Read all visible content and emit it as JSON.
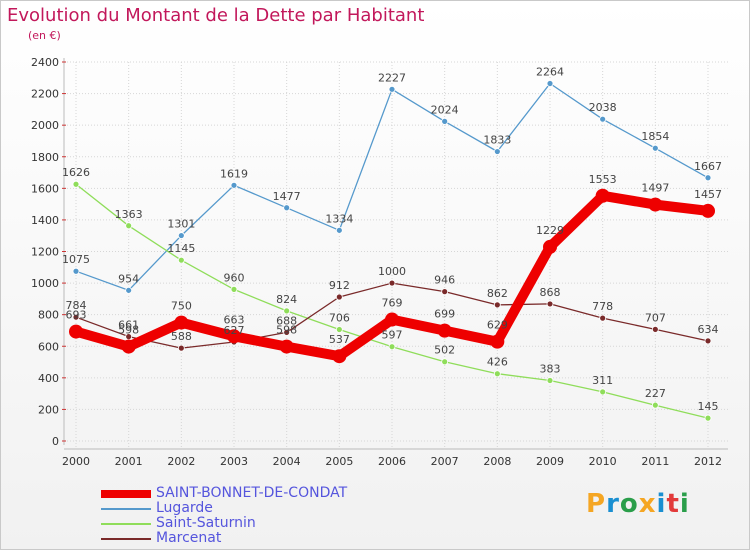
{
  "header": {
    "title": "Evolution du Montant de la Dette par Habitant",
    "subtitle": "(en €)"
  },
  "logo": {
    "text": "Proxiti",
    "colors": [
      "#f5a623",
      "#1a8fd1",
      "#2a9e4a",
      "#f5a623",
      "#1a8fd1",
      "#e23a3a",
      "#2a9e4a"
    ]
  },
  "chart_data": {
    "type": "line",
    "title": "Evolution du Montant de la Dette par Habitant",
    "subtitle": "(en €)",
    "xlabel": "",
    "ylabel": "",
    "ylim": [
      0,
      2400
    ],
    "yticks": [
      0,
      200,
      400,
      600,
      800,
      1000,
      1200,
      1400,
      1600,
      1800,
      2000,
      2200,
      2400
    ],
    "categories": [
      "2000",
      "2001",
      "2002",
      "2003",
      "2004",
      "2005",
      "2006",
      "2007",
      "2008",
      "2009",
      "2010",
      "2011",
      "2012"
    ],
    "grid": true,
    "legend_position": "bottom-left",
    "series": [
      {
        "name": "SAINT-BONNET-DE-CONDAT",
        "color": "#ee0000",
        "width": 10,
        "marker": 7,
        "values": [
          693,
          598,
          750,
          663,
          598,
          537,
          769,
          699,
          629,
          1229,
          1553,
          1497,
          1457
        ],
        "labels": [
          "693",
          "598",
          "750",
          "663",
          "598",
          "537",
          "769",
          "699",
          "629",
          "1229",
          "1553",
          "1497",
          "1457"
        ]
      },
      {
        "name": "Lugarde",
        "color": "#5599cc",
        "width": 1.3,
        "marker": 3,
        "values": [
          1075,
          954,
          1301,
          1619,
          1477,
          1334,
          2227,
          2024,
          1833,
          2264,
          2038,
          1854,
          1667
        ],
        "labels": [
          "1075",
          "954",
          "1301",
          "1619",
          "1477",
          "1334",
          "2227",
          "2024",
          "1833",
          "2264",
          "2038",
          "1854",
          "1667"
        ]
      },
      {
        "name": "Saint-Saturnin",
        "color": "#8fdd5a",
        "width": 1.3,
        "marker": 3,
        "values": [
          1626,
          1363,
          1145,
          960,
          824,
          706,
          597,
          502,
          426,
          383,
          311,
          227,
          145
        ],
        "labels": [
          "1626",
          "1363",
          "1145",
          "960",
          "824",
          "706",
          "597",
          "502",
          "426",
          "383",
          "311",
          "227",
          "145"
        ]
      },
      {
        "name": "Marcenat",
        "color": "#7a2a2a",
        "width": 1.3,
        "marker": 3,
        "values": [
          784,
          661,
          588,
          627,
          688,
          912,
          1000,
          946,
          862,
          868,
          778,
          707,
          634
        ],
        "labels": [
          "784",
          "661",
          "588",
          "627",
          "688",
          "912",
          "1000",
          "946",
          "862",
          "868",
          "778",
          "707",
          "634"
        ]
      }
    ]
  }
}
